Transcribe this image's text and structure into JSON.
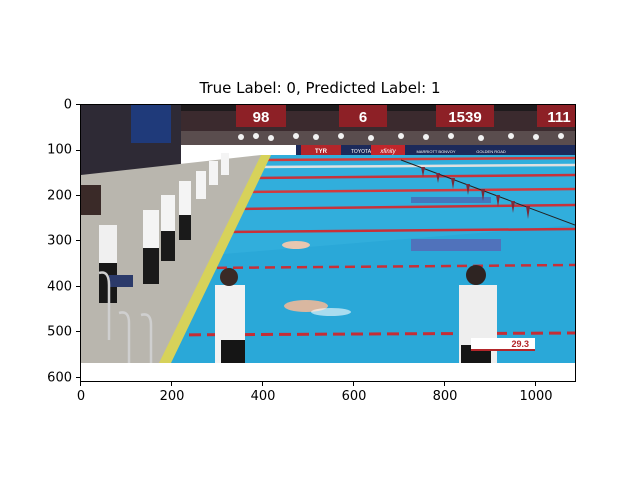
{
  "figure": {
    "title": "True Label: 0, Predicted Label: 1"
  },
  "axes": {
    "x_ticks": [
      "0",
      "200",
      "400",
      "600",
      "800",
      "1000"
    ],
    "y_ticks": [
      "0",
      "100",
      "200",
      "300",
      "400",
      "500",
      "600"
    ],
    "x_range": [
      0,
      1088
    ],
    "y_range": [
      612,
      0
    ]
  },
  "image": {
    "description_free": true,
    "scoreboard_numbers": [
      "98",
      "6",
      "1539",
      "111"
    ],
    "sponsor_banners": [
      "TYR",
      "TOYOTA",
      "xfinity",
      "MARRIOTT BONVOY",
      "GOLDEN ROAD"
    ],
    "time_display": "29.3",
    "colors": {
      "pool_water": "#2aa8d8",
      "deck": "#c9c9c4",
      "lane_marker": "#d7d25a",
      "banner_red": "#9a1f24",
      "backstroke_flags": "#7a2a3a"
    }
  }
}
